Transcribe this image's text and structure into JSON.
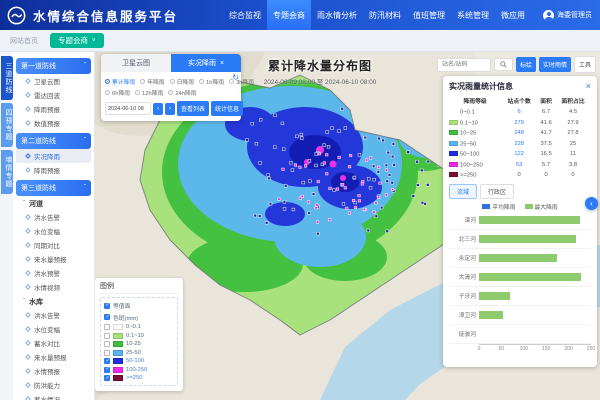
{
  "brand": {
    "title": "水情综合信息服务平台"
  },
  "header": {
    "nav": [
      {
        "label": "综合监视",
        "active": false
      },
      {
        "label": "专题会商",
        "active": true
      },
      {
        "label": "雨水情分析",
        "active": false
      },
      {
        "label": "防汛材料",
        "active": false
      },
      {
        "label": "值班管理",
        "active": false
      },
      {
        "label": "系统管理",
        "active": false
      },
      {
        "label": "微应用",
        "active": false
      }
    ],
    "user": "海委管理员"
  },
  "tabstrip": {
    "home": "网站首页",
    "active": "专题会商"
  },
  "side_tabs": [
    {
      "label": "三道防线",
      "active": true
    },
    {
      "label": "四预专题",
      "active": false
    },
    {
      "label": "墒情专题",
      "active": false
    }
  ],
  "sidebar": {
    "sections": [
      {
        "title": "第一道防线",
        "items": [
          {
            "label": "卫星云图"
          },
          {
            "label": "雷达回波"
          },
          {
            "label": "降雨预报"
          },
          {
            "label": "数值预报"
          }
        ]
      },
      {
        "title": "第二道防线",
        "items": [
          {
            "label": "实况降雨",
            "active": true
          },
          {
            "label": "降雨预报"
          }
        ]
      },
      {
        "title": "第三道防线",
        "groups": [
          {
            "title": "河道",
            "items": [
              "洪水告警",
              "水位变幅",
              "同期对比",
              "来水量预报",
              "洪水预警",
              "水情视频"
            ]
          },
          {
            "title": "水库",
            "items": [
              "洪水告警",
              "水位变幅",
              "蓄水对比",
              "来水量预报",
              "水情预报",
              "防洪能力",
              "蓄水情况"
            ]
          }
        ]
      }
    ]
  },
  "map": {
    "title": "累计降水量分布图",
    "subtitle": "2024-06-09 08:00 至 2024-06-10 08:00"
  },
  "control_panel": {
    "tabs": [
      {
        "label": "卫星云图",
        "active": false
      },
      {
        "label": "实况降雨",
        "active": true
      }
    ],
    "options": [
      {
        "label": "累计降雨",
        "selected": true
      },
      {
        "label": "年降雨"
      },
      {
        "label": "日降雨"
      },
      {
        "label": "1h降雨"
      },
      {
        "label": "3h降雨"
      },
      {
        "label": "6h降雨"
      },
      {
        "label": "12h降雨"
      },
      {
        "label": "24h降雨"
      }
    ],
    "date_value": "2024-06-10 08",
    "buttons": [
      "查看列表",
      "统计信息"
    ]
  },
  "search_bar": {
    "placeholder": "站名/站码",
    "buttons": [
      {
        "label": "标绘",
        "style": "primary"
      },
      {
        "label": "实时雨情",
        "style": "primary"
      },
      {
        "label": "工具",
        "style": "plain"
      }
    ]
  },
  "legend_panel": {
    "title": "图例",
    "layers": [
      {
        "label": "等值面",
        "checked": true
      },
      {
        "label": "色斑(mm)",
        "checked": true
      }
    ],
    "classes": [
      {
        "range": "0~0.1",
        "color": "#ffffff",
        "checked": false
      },
      {
        "range": "0.1~10",
        "color": "#a9e27d",
        "checked": false
      },
      {
        "range": "10-25",
        "color": "#3fbf3f",
        "checked": false
      },
      {
        "range": "25-50",
        "color": "#58b5f2",
        "checked": false
      },
      {
        "range": "50-100",
        "color": "#1d2fe0",
        "checked": true
      },
      {
        "range": "100-250",
        "color": "#ef2bef",
        "checked": true
      },
      {
        "range": ">=250",
        "color": "#7a0f35",
        "checked": true
      }
    ]
  },
  "stats_panel": {
    "title": "实况雨量统计信息",
    "table": {
      "headers": [
        "降雨等级",
        "站点个数",
        "面积",
        "面积占比"
      ],
      "rows": [
        {
          "range": "0~0.1",
          "color": "",
          "count": "6",
          "area": "6.7",
          "pct": "4.5"
        },
        {
          "range": "0.1~10",
          "color": "#a9e27d",
          "count": "279",
          "area": "41.6",
          "pct": "27.9"
        },
        {
          "range": "10~25",
          "color": "#3fbf3f",
          "count": "248",
          "area": "41.7",
          "pct": "27.8"
        },
        {
          "range": "25~50",
          "color": "#58b5f2",
          "count": "228",
          "area": "37.5",
          "pct": "25"
        },
        {
          "range": "50~100",
          "color": "#1d2fe0",
          "count": "122",
          "area": "16.5",
          "pct": "11"
        },
        {
          "range": "100~250",
          "color": "#ef2bef",
          "count": "53",
          "area": "5.7",
          "pct": "3.8"
        },
        {
          "range": ">=250",
          "color": "#7a0f35",
          "count": "0",
          "area": "0",
          "pct": "0"
        }
      ]
    },
    "tabs": [
      {
        "label": "流域",
        "active": true
      },
      {
        "label": "行政区",
        "active": false
      }
    ]
  },
  "chart_data": {
    "type": "bar",
    "orientation": "horizontal",
    "categories": [
      "滦河",
      "北三河",
      "永定河",
      "大清河",
      "子牙河",
      "漳卫河",
      "徒骇河"
    ],
    "series": [
      {
        "name": "平均降雨",
        "color": "#2f6fde",
        "values": [
          0,
          0,
          0,
          0,
          0,
          0,
          0
        ]
      },
      {
        "name": "最大降雨",
        "color": "#8ecb6f",
        "values": [
          225,
          216,
          174,
          228,
          69,
          54,
          0
        ]
      }
    ],
    "xlim": [
      0,
      250
    ],
    "xticks": [
      0,
      50,
      100,
      150,
      200,
      250
    ],
    "legend_position": "top",
    "grid": false
  },
  "icons": {
    "close": "×",
    "chevron_up": "ˆ",
    "chevron_down": "˅",
    "refresh": "↻",
    "prev": "‹",
    "next": "›",
    "download": "↓",
    "collapse": "‹"
  },
  "colors": {
    "accent": "#2a7bf5",
    "pill": "#00b796",
    "sea": "#b5d7ea",
    "marker_station": "#1b2b9e",
    "marker_heavy": "#f02df0"
  }
}
